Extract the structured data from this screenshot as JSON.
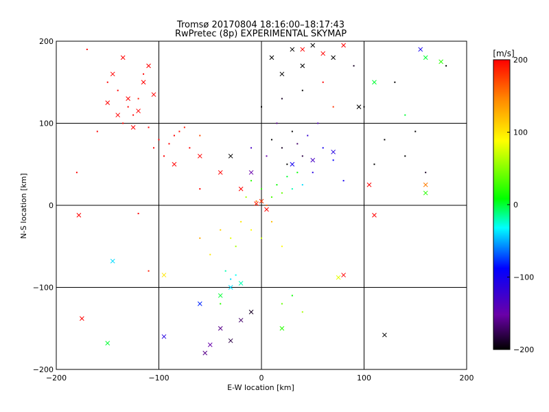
{
  "chart_data": {
    "type": "scatter",
    "title": "Tromsø 20170804 18:16:00–18:17:43",
    "subtitle": "RwPretec (8p) EXPERIMENTAL SKYMAP",
    "xlabel": "E-W location [km]",
    "ylabel": "N-S location [km]",
    "xlim": [
      -200,
      200
    ],
    "ylim": [
      -200,
      200
    ],
    "x_ticks": [
      -200,
      -100,
      0,
      100,
      200
    ],
    "y_ticks": [
      -200,
      -100,
      0,
      100,
      200
    ],
    "grid": true,
    "colorbar": {
      "label": "[m/s]",
      "range": [
        -200,
        200
      ],
      "ticks": [
        200,
        100,
        0,
        -100,
        -200
      ],
      "colors": [
        "#000000",
        "#6a00a8",
        "#0000ff",
        "#00ffff",
        "#00ff00",
        "#ffff00",
        "#ff8c00",
        "#ff0000"
      ]
    },
    "series": [
      {
        "marker": "dot",
        "points": [
          {
            "x": -130,
            "y": 120,
            "v": 200
          },
          {
            "x": -125,
            "y": 110,
            "v": 200
          },
          {
            "x": -120,
            "y": 130,
            "v": 190
          },
          {
            "x": -135,
            "y": 100,
            "v": 200
          },
          {
            "x": -110,
            "y": 95,
            "v": 200
          },
          {
            "x": -100,
            "y": 80,
            "v": 200
          },
          {
            "x": -90,
            "y": 75,
            "v": 200
          },
          {
            "x": -80,
            "y": 90,
            "v": 195
          },
          {
            "x": -70,
            "y": 70,
            "v": 200
          },
          {
            "x": -95,
            "y": 60,
            "v": 200
          },
          {
            "x": -150,
            "y": 150,
            "v": 200
          },
          {
            "x": -140,
            "y": 140,
            "v": 200
          },
          {
            "x": -115,
            "y": 160,
            "v": 200
          },
          {
            "x": -160,
            "y": 90,
            "v": 200
          },
          {
            "x": -85,
            "y": 85,
            "v": 200
          },
          {
            "x": -75,
            "y": 95,
            "v": 190
          },
          {
            "x": -105,
            "y": 70,
            "v": 200
          },
          {
            "x": -60,
            "y": 85,
            "v": 170
          },
          {
            "x": 10,
            "y": 80,
            "v": -200
          },
          {
            "x": 20,
            "y": 70,
            "v": -190
          },
          {
            "x": 30,
            "y": 90,
            "v": -200
          },
          {
            "x": 40,
            "y": 60,
            "v": -180
          },
          {
            "x": 15,
            "y": 100,
            "v": -160
          },
          {
            "x": 25,
            "y": 50,
            "v": -200
          },
          {
            "x": 35,
            "y": 75,
            "v": -170
          },
          {
            "x": 45,
            "y": 85,
            "v": -120
          },
          {
            "x": 5,
            "y": 60,
            "v": -150
          },
          {
            "x": 50,
            "y": 40,
            "v": -110
          },
          {
            "x": 60,
            "y": 70,
            "v": -100
          },
          {
            "x": 70,
            "y": 55,
            "v": -90
          },
          {
            "x": 80,
            "y": 30,
            "v": -100
          },
          {
            "x": 55,
            "y": 100,
            "v": -140
          },
          {
            "x": -10,
            "y": 70,
            "v": -130
          },
          {
            "x": 0,
            "y": 120,
            "v": -200
          },
          {
            "x": 20,
            "y": 130,
            "v": -190
          },
          {
            "x": 40,
            "y": 140,
            "v": -200
          },
          {
            "x": 120,
            "y": 80,
            "v": -200
          },
          {
            "x": 140,
            "y": 60,
            "v": -200
          },
          {
            "x": 150,
            "y": 90,
            "v": -200
          },
          {
            "x": 110,
            "y": 50,
            "v": -200
          },
          {
            "x": 160,
            "y": 40,
            "v": -190
          },
          {
            "x": 130,
            "y": 150,
            "v": -200
          },
          {
            "x": 100,
            "y": 120,
            "v": -200
          },
          {
            "x": 90,
            "y": 170,
            "v": -190
          },
          {
            "x": 0,
            "y": 20,
            "v": 20
          },
          {
            "x": 10,
            "y": 10,
            "v": 30
          },
          {
            "x": -5,
            "y": 5,
            "v": 150
          },
          {
            "x": 5,
            "y": 0,
            "v": 160
          },
          {
            "x": 15,
            "y": 25,
            "v": 10
          },
          {
            "x": 20,
            "y": 15,
            "v": 40
          },
          {
            "x": -15,
            "y": 10,
            "v": 60
          },
          {
            "x": 25,
            "y": 35,
            "v": 0
          },
          {
            "x": 30,
            "y": 20,
            "v": -20
          },
          {
            "x": 35,
            "y": 40,
            "v": 10
          },
          {
            "x": -10,
            "y": 30,
            "v": 20
          },
          {
            "x": 40,
            "y": 25,
            "v": -40
          },
          {
            "x": -20,
            "y": -20,
            "v": 100
          },
          {
            "x": -30,
            "y": -40,
            "v": 80
          },
          {
            "x": -10,
            "y": -30,
            "v": 90
          },
          {
            "x": -40,
            "y": -30,
            "v": 110
          },
          {
            "x": -25,
            "y": -50,
            "v": 60
          },
          {
            "x": 0,
            "y": -40,
            "v": 70
          },
          {
            "x": 10,
            "y": -20,
            "v": 120
          },
          {
            "x": 20,
            "y": -50,
            "v": 90
          },
          {
            "x": -50,
            "y": -60,
            "v": 100
          },
          {
            "x": -60,
            "y": -40,
            "v": 130
          },
          {
            "x": -35,
            "y": -80,
            "v": -20
          },
          {
            "x": -30,
            "y": -90,
            "v": -40
          },
          {
            "x": -25,
            "y": -85,
            "v": -30
          },
          {
            "x": -40,
            "y": -120,
            "v": 20
          },
          {
            "x": 20,
            "y": -120,
            "v": 40
          },
          {
            "x": 30,
            "y": -110,
            "v": 10
          },
          {
            "x": 40,
            "y": -130,
            "v": 60
          },
          {
            "x": -120,
            "y": -10,
            "v": 200
          },
          {
            "x": -110,
            "y": -80,
            "v": 190
          },
          {
            "x": -60,
            "y": 20,
            "v": 200
          },
          {
            "x": 60,
            "y": 150,
            "v": 200
          },
          {
            "x": 70,
            "y": 120,
            "v": 180
          },
          {
            "x": -180,
            "y": 40,
            "v": 200
          },
          {
            "x": -170,
            "y": 190,
            "v": 200
          },
          {
            "x": 140,
            "y": 110,
            "v": 0
          },
          {
            "x": 180,
            "y": 170,
            "v": -200
          }
        ]
      },
      {
        "marker": "x",
        "points": [
          {
            "x": -140,
            "y": 110,
            "v": 200
          },
          {
            "x": -130,
            "y": 130,
            "v": 200
          },
          {
            "x": -125,
            "y": 95,
            "v": 200
          },
          {
            "x": -115,
            "y": 150,
            "v": 200
          },
          {
            "x": -105,
            "y": 135,
            "v": 200
          },
          {
            "x": -145,
            "y": 160,
            "v": 200
          },
          {
            "x": -135,
            "y": 180,
            "v": 200
          },
          {
            "x": -150,
            "y": 125,
            "v": 200
          },
          {
            "x": -110,
            "y": 170,
            "v": 200
          },
          {
            "x": -120,
            "y": 115,
            "v": 200
          },
          {
            "x": -178,
            "y": -12,
            "v": 200
          },
          {
            "x": -175,
            "y": -138,
            "v": 200
          },
          {
            "x": -150,
            "y": -168,
            "v": 0
          },
          {
            "x": -145,
            "y": -68,
            "v": -40
          },
          {
            "x": -95,
            "y": -85,
            "v": 100
          },
          {
            "x": -95,
            "y": -160,
            "v": -110
          },
          {
            "x": -60,
            "y": -120,
            "v": -80
          },
          {
            "x": -40,
            "y": -150,
            "v": -160
          },
          {
            "x": -30,
            "y": -165,
            "v": -180
          },
          {
            "x": -20,
            "y": -140,
            "v": -170
          },
          {
            "x": -50,
            "y": -170,
            "v": -150
          },
          {
            "x": -10,
            "y": -130,
            "v": -190
          },
          {
            "x": -55,
            "y": -180,
            "v": -160
          },
          {
            "x": -30,
            "y": -100,
            "v": -40
          },
          {
            "x": -20,
            "y": -95,
            "v": -20
          },
          {
            "x": -40,
            "y": -110,
            "v": 0
          },
          {
            "x": 120,
            "y": -158,
            "v": -200
          },
          {
            "x": 95,
            "y": 120,
            "v": -200
          },
          {
            "x": 110,
            "y": 150,
            "v": 0
          },
          {
            "x": 155,
            "y": 190,
            "v": -100
          },
          {
            "x": 160,
            "y": 180,
            "v": 0
          },
          {
            "x": 175,
            "y": 175,
            "v": 20
          },
          {
            "x": 160,
            "y": 25,
            "v": 150
          },
          {
            "x": 160,
            "y": 15,
            "v": 20
          },
          {
            "x": 105,
            "y": 25,
            "v": 200
          },
          {
            "x": 110,
            "y": -12,
            "v": 200
          },
          {
            "x": 10,
            "y": 180,
            "v": -200
          },
          {
            "x": 30,
            "y": 190,
            "v": -200
          },
          {
            "x": 50,
            "y": 195,
            "v": -200
          },
          {
            "x": 70,
            "y": 180,
            "v": -200
          },
          {
            "x": 40,
            "y": 170,
            "v": -200
          },
          {
            "x": 20,
            "y": 160,
            "v": -200
          },
          {
            "x": 40,
            "y": 190,
            "v": 200
          },
          {
            "x": 60,
            "y": 185,
            "v": 200
          },
          {
            "x": 80,
            "y": 195,
            "v": 200
          },
          {
            "x": 75,
            "y": -88,
            "v": 80
          },
          {
            "x": 80,
            "y": -85,
            "v": 200
          },
          {
            "x": -85,
            "y": 50,
            "v": 200
          },
          {
            "x": -60,
            "y": 60,
            "v": 200
          },
          {
            "x": -40,
            "y": 40,
            "v": 200
          },
          {
            "x": -20,
            "y": 20,
            "v": 200
          },
          {
            "x": 0,
            "y": 5,
            "v": 180
          },
          {
            "x": 5,
            "y": -5,
            "v": 200
          },
          {
            "x": -5,
            "y": 2,
            "v": 190
          },
          {
            "x": -30,
            "y": 60,
            "v": -200
          },
          {
            "x": -10,
            "y": 40,
            "v": -150
          },
          {
            "x": 30,
            "y": 50,
            "v": -100
          },
          {
            "x": 50,
            "y": 55,
            "v": -130
          },
          {
            "x": 70,
            "y": 65,
            "v": -110
          },
          {
            "x": 20,
            "y": -150,
            "v": 20
          }
        ]
      }
    ]
  }
}
